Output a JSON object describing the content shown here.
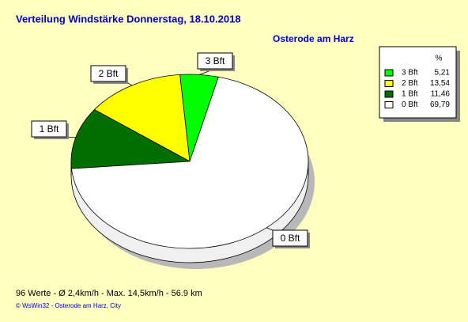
{
  "chart_data": {
    "type": "pie",
    "title": "Verteilung Windstärke  Donnerstag, 18.10.2018",
    "subtitle": "Osterode am Harz",
    "categories": [
      "3 Bft",
      "2 Bft",
      "1 Bft",
      "0 Bft"
    ],
    "values": [
      5.21,
      13.54,
      11.46,
      69.79
    ],
    "value_labels": [
      "5,21",
      "13,54",
      "11,46",
      "69,79"
    ],
    "colors": [
      "#00ff00",
      "#ffff00",
      "#006e00",
      "#ffffff"
    ],
    "legend_header": "%",
    "legend": "top-right",
    "footer": "96 Werte   -   Ø 2,4km/h  -  Max. 14,5km/h  -   56.9 km",
    "copyright": "© WsWin32  -  Osterode am Harz, City"
  }
}
